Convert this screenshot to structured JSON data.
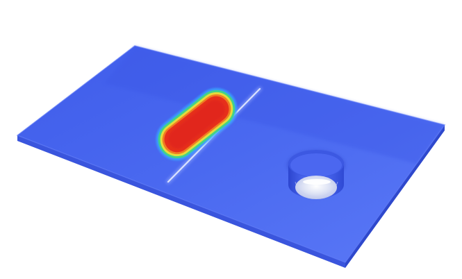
{
  "colors": {
    "background": "#ffffff",
    "plate_blue": "#4a67ee",
    "plate_edge": "#2f49d0",
    "hot_red": "#e8321c",
    "mid_orange": "#f08a22",
    "mid_yellow": "#e8e040",
    "mid_green": "#3fd08a",
    "mid_cyan": "#3aa8ff",
    "ridge_white": "#dfe6ff",
    "hole_wall": "#3f5ae0"
  }
}
